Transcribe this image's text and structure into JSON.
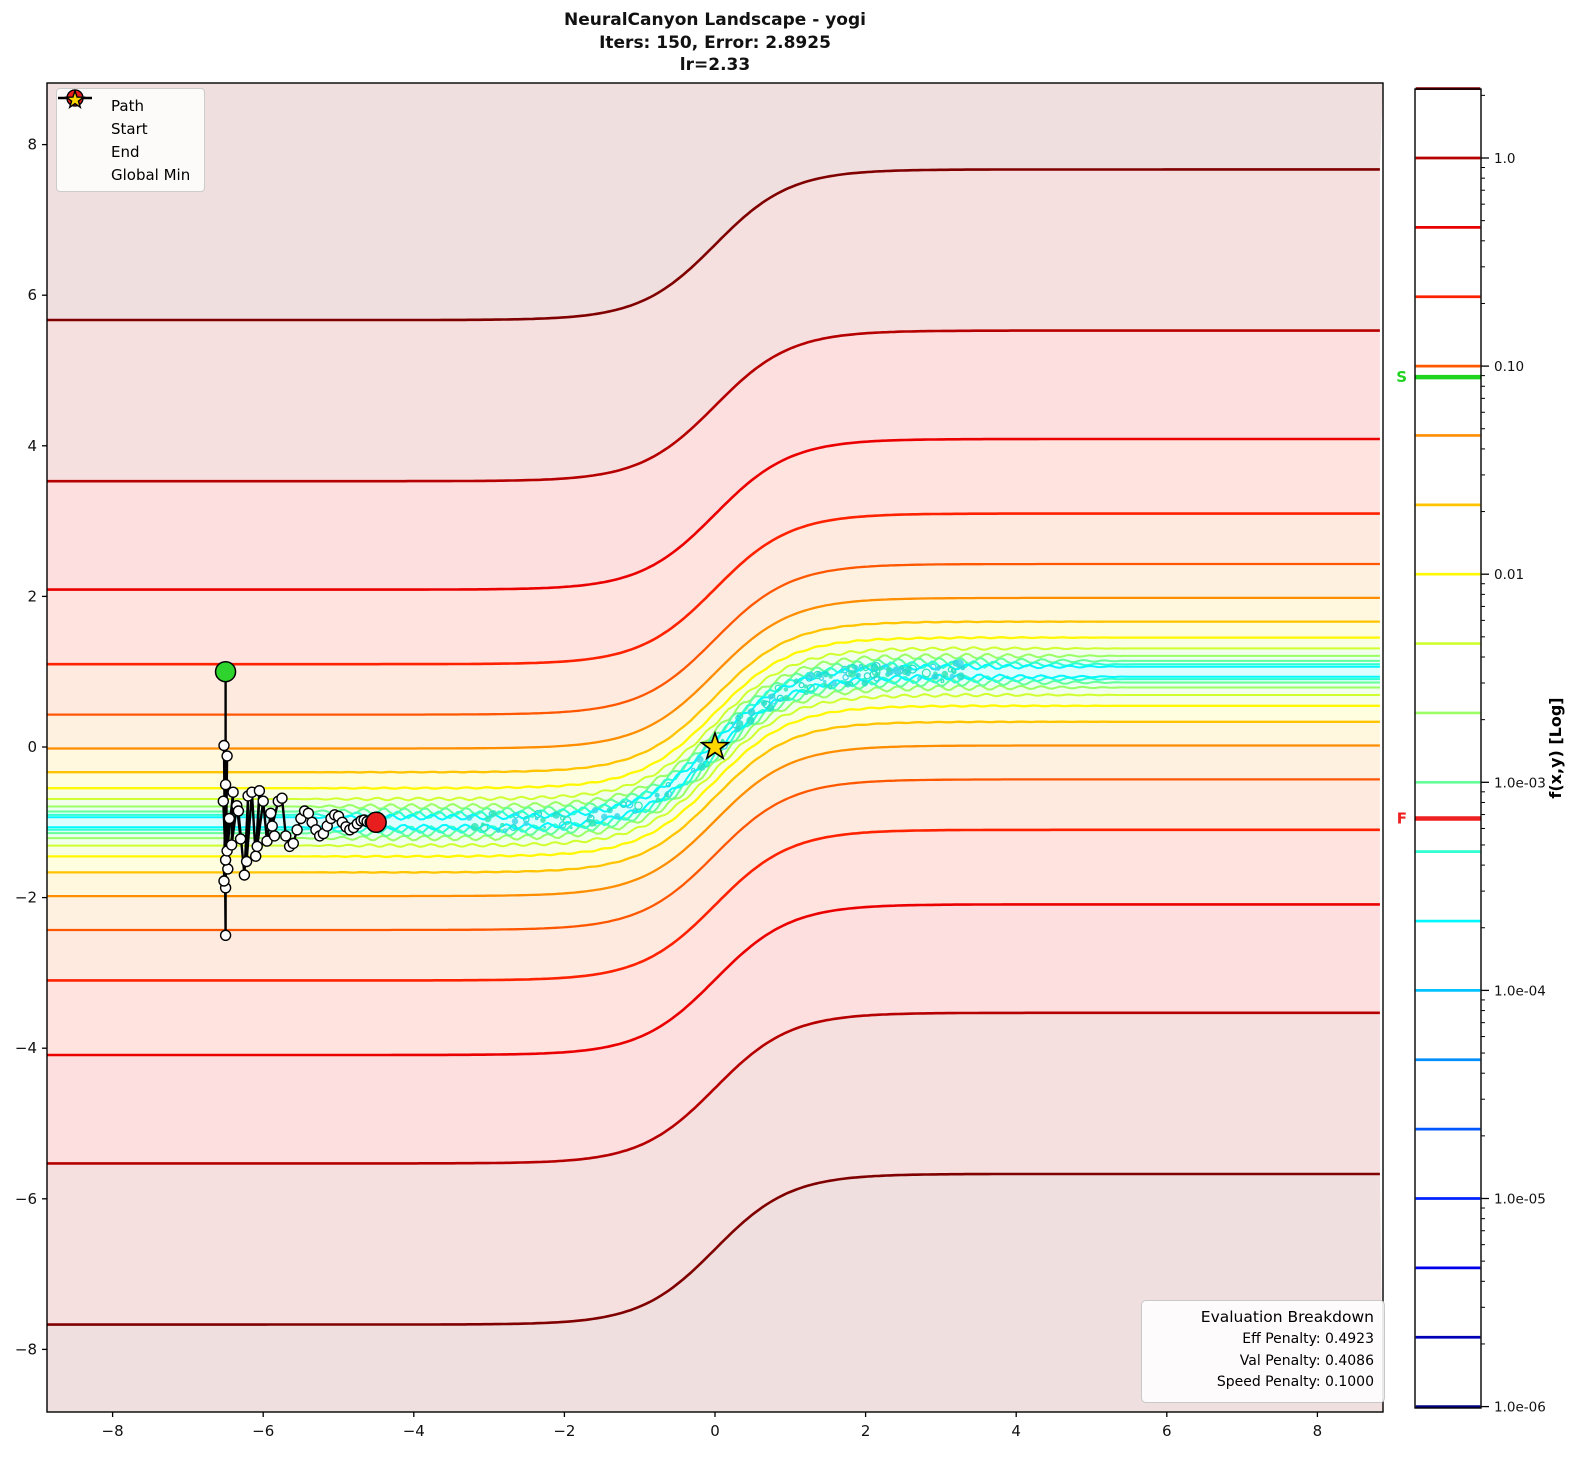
{
  "title_lines": [
    "NeuralCanyon Landscape - yogi",
    "Iters: 150, Error: 2.8925",
    "lr=2.33"
  ],
  "legend": {
    "items": [
      {
        "label": "Path"
      },
      {
        "label": "Start"
      },
      {
        "label": "End"
      },
      {
        "label": "Global Min"
      }
    ]
  },
  "eval_box": {
    "title": "Evaluation Breakdown",
    "lines": [
      "Eff Penalty: 0.4923",
      "Val Penalty: 0.4086",
      "Speed Penalty: 0.1000"
    ]
  },
  "axis": {
    "x_tick_labels": [
      "−8",
      "−6",
      "−4",
      "−2",
      "0",
      "2",
      "4",
      "6",
      "8"
    ],
    "x_tick_values": [
      -8,
      -6,
      -4,
      -2,
      0,
      2,
      4,
      6,
      8
    ],
    "y_tick_labels": [
      "8",
      "6",
      "4",
      "2",
      "0",
      "−2",
      "−4",
      "−6",
      "−8"
    ],
    "y_tick_values": [
      8,
      6,
      4,
      2,
      0,
      -2,
      -4,
      -6,
      -8
    ]
  },
  "colorbar": {
    "label": "f(x,y) [Log]",
    "scale": "log",
    "tick_labels": [
      "1.0",
      "0.10",
      "0.01",
      "1.0e-03",
      "1.0e-04",
      "1.0e-05",
      "1.0e-06"
    ],
    "tick_values": [
      1,
      0.1,
      0.01,
      0.001,
      0.0001,
      1e-05,
      1e-06
    ],
    "start_marker": {
      "label": "S",
      "value": 0.0885,
      "color": "#21d321"
    },
    "end_marker": {
      "label": "F",
      "value": 0.00067,
      "color": "#ee2020"
    }
  },
  "chart_data": {
    "type": "contour",
    "title": "NeuralCanyon Landscape - yogi",
    "subtitle": "Iters: 150, Error: 2.8925, lr=2.33",
    "optimizer": "yogi",
    "iterations": 150,
    "error": 2.8925,
    "learning_rate": 2.33,
    "xlim": [
      -8.87,
      8.87
    ],
    "ylim": [
      -8.83,
      8.82
    ],
    "canyon_center": "y = tanh(x)",
    "value_scale": "log, f(x,y) shown from 1.0e-06 to ~2.15",
    "levels": [
      2.154,
      1.0,
      0.4642,
      0.2154,
      0.1,
      0.04642,
      0.02154,
      0.01,
      0.004642,
      0.002154,
      0.001,
      0.0004642,
      0.0002154,
      0.0001,
      4.642e-05,
      2.154e-05,
      1e-05,
      4.642e-06,
      2.154e-06,
      1e-06
    ],
    "colors": [
      "#800000",
      "#b60000",
      "#eb0000",
      "#ff2200",
      "#ff5700",
      "#ff8d00",
      "#ffc300",
      "#fff800",
      "#d0ff2f",
      "#9aff65",
      "#65ff9a",
      "#2fffd0",
      "#00f8ff",
      "#00c3ff",
      "#008dff",
      "#0057ff",
      "#0022ff",
      "#0000eb",
      "#0000b6",
      "#000080"
    ],
    "plot_line_offsets": [
      6.67,
      4.53,
      3.09,
      2.1,
      1.43,
      0.98,
      0.665,
      0.453,
      0.309,
      0.21,
      0.143,
      0.098,
      0.0667
    ],
    "ripple_amps": [
      0,
      0,
      0,
      0,
      0,
      0,
      0.004,
      0.008,
      0.018,
      0.032,
      0.044,
      0.044,
      0.034
    ],
    "start": [
      -6.5,
      1.0
    ],
    "end": [
      -4.5,
      -1.0
    ],
    "global_min": [
      0,
      0
    ],
    "path": [
      [
        -6.5,
        1.0
      ],
      [
        -6.5,
        -2.5
      ],
      [
        -6.52,
        0.02
      ],
      [
        -6.5,
        -1.87
      ],
      [
        -6.48,
        -0.12
      ],
      [
        -6.52,
        -1.78
      ],
      [
        -6.5,
        -0.5
      ],
      [
        -6.47,
        -1.62
      ],
      [
        -6.53,
        -0.72
      ],
      [
        -6.5,
        -1.5
      ],
      [
        -6.45,
        -0.95
      ],
      [
        -6.48,
        -1.38
      ],
      [
        -6.4,
        -0.6
      ],
      [
        -6.42,
        -1.3
      ],
      [
        -6.35,
        -0.78
      ],
      [
        -6.3,
        -1.22
      ],
      [
        -6.33,
        -0.85
      ],
      [
        -6.25,
        -1.7
      ],
      [
        -6.2,
        -0.65
      ],
      [
        -6.22,
        -1.52
      ],
      [
        -6.15,
        -0.6
      ],
      [
        -6.1,
        -1.45
      ],
      [
        -6.05,
        -0.58
      ],
      [
        -6.08,
        -1.32
      ],
      [
        -6.0,
        -0.72
      ],
      [
        -5.95,
        -1.25
      ],
      [
        -5.9,
        -0.88
      ],
      [
        -5.85,
        -1.18
      ],
      [
        -5.88,
        -1.05
      ],
      [
        -5.8,
        -0.72
      ],
      [
        -5.75,
        -0.68
      ],
      [
        -5.7,
        -1.18
      ],
      [
        -5.65,
        -1.32
      ],
      [
        -5.6,
        -1.28
      ],
      [
        -5.55,
        -1.1
      ],
      [
        -5.5,
        -0.95
      ],
      [
        -5.45,
        -0.85
      ],
      [
        -5.4,
        -0.88
      ],
      [
        -5.35,
        -1.0
      ],
      [
        -5.3,
        -1.1
      ],
      [
        -5.25,
        -1.18
      ],
      [
        -5.2,
        -1.15
      ],
      [
        -5.15,
        -1.05
      ],
      [
        -5.1,
        -0.95
      ],
      [
        -5.05,
        -0.9
      ],
      [
        -5.0,
        -0.92
      ],
      [
        -4.95,
        -1.0
      ],
      [
        -4.9,
        -1.06
      ],
      [
        -4.85,
        -1.1
      ],
      [
        -4.8,
        -1.07
      ],
      [
        -4.75,
        -1.02
      ],
      [
        -4.7,
        -0.98
      ],
      [
        -4.66,
        -0.97
      ],
      [
        -4.62,
        -0.99
      ],
      [
        -4.58,
        -1.0
      ],
      [
        -4.55,
        -1.01
      ],
      [
        -4.52,
        -1.0
      ],
      [
        -4.5,
        -1.0
      ]
    ],
    "marker_colors": {
      "start": "#2ed32e",
      "end": "#e81e1e",
      "global_min": "#ffd700",
      "path_marker": "#ffffff"
    }
  }
}
